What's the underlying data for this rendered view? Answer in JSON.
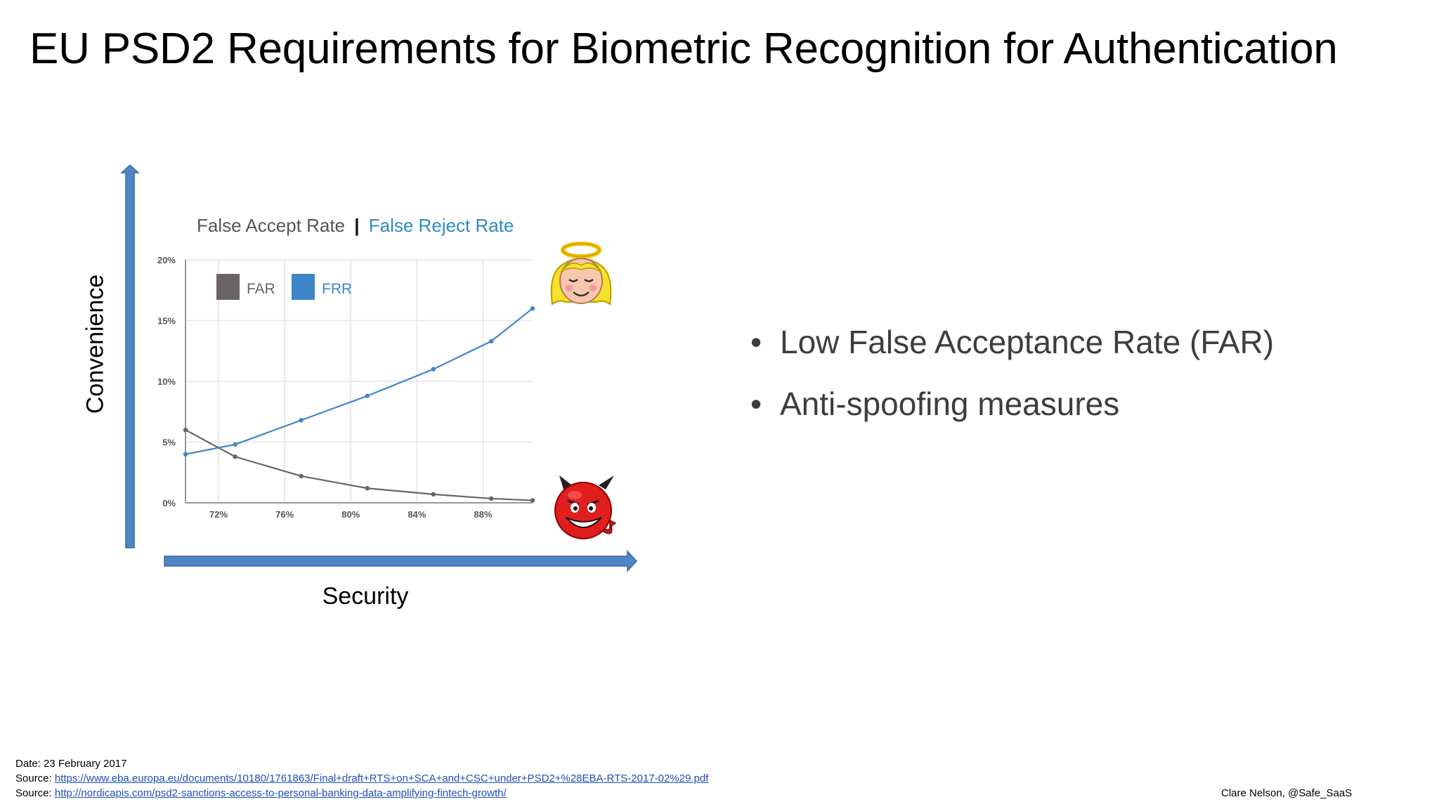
{
  "slide": {
    "title": "EU PSD2 Requirements for Biometric Recognition for Authentication",
    "y_axis_label": "Convenience",
    "x_axis_label": "Security"
  },
  "bullets": [
    "Low False Acceptance Rate (FAR)",
    "Anti-spoofing measures"
  ],
  "footer": {
    "date": "Date: 23 February 2017",
    "source_prefix": "Source:",
    "source1": "https://www.eba.europa.eu/documents/10180/1761863/Final+draft+RTS+on+SCA+and+CSC+under+PSD2+%28EBA-RTS-2017-02%29.pdf",
    "source2": "http://nordicapis.com/psd2-sanctions-access-to-personal-banking-data-amplifying-fintech-growth/",
    "credit": "Clare Nelson, @Safe_SaaS"
  },
  "chart_data": {
    "type": "line",
    "title_part1": "False Accept Rate",
    "title_separator": "|",
    "title_part2": "False Reject Rate",
    "xlabel": "",
    "ylabel": "",
    "x": [
      70,
      73,
      77,
      81,
      85,
      88.5,
      91
    ],
    "xlim": [
      70,
      91
    ],
    "ylim": [
      0,
      20
    ],
    "x_ticks": [
      72,
      76,
      80,
      84,
      88
    ],
    "x_tick_labels": [
      "72%",
      "76%",
      "80%",
      "84%",
      "88%"
    ],
    "y_ticks": [
      0,
      5,
      10,
      15,
      20
    ],
    "y_tick_labels": [
      "0%",
      "5%",
      "10%",
      "15%",
      "20%"
    ],
    "grid": true,
    "legend_position": "top-left",
    "series": [
      {
        "name": "FAR",
        "color": "#6b6466",
        "values": [
          6,
          3.8,
          2.2,
          1.2,
          0.7,
          0.35,
          0.2
        ]
      },
      {
        "name": "FRR",
        "color": "#3f86c8",
        "values": [
          4,
          4.8,
          6.8,
          8.8,
          11,
          13.3,
          16
        ]
      }
    ],
    "title_colors": {
      "part1": "#555555",
      "part2": "#2e8bc0"
    }
  },
  "icons": {
    "angel": "angel-face-icon",
    "devil": "devil-face-icon"
  },
  "colors": {
    "axis_arrow": "#4f86c6",
    "axis_arrow_stroke": "#3a6aa3"
  }
}
